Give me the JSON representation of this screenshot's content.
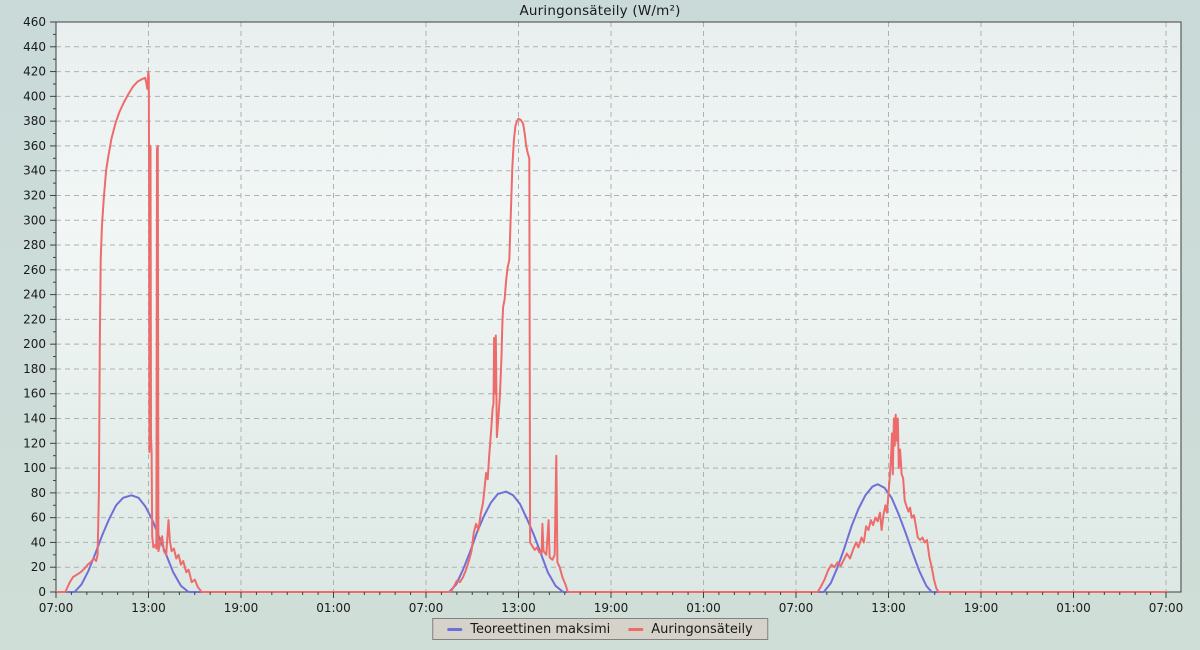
{
  "colors": {
    "outer_bg": "#cddcd8",
    "plot_bg_stops": [
      "#e8efee",
      "#f2f7f6",
      "#dde8e4"
    ],
    "grid": "#b0b0b0",
    "axis": "#404040",
    "text": "#1a1a1a",
    "legend_bg": "#d5d2c9",
    "legend_border": "#828282"
  },
  "chart_data": {
    "type": "line",
    "title": "Auringonsäteily (W/m²)",
    "grid": "dashed",
    "x_axis": {
      "unit": "hours",
      "start_hour": 7,
      "end_hour": 79,
      "major_step_hours": 6,
      "minor_step_hours": 1,
      "tick_labels": [
        "07:00",
        "13:00",
        "19:00",
        "01:00",
        "07:00",
        "13:00",
        "19:00",
        "01:00",
        "07:00",
        "13:00",
        "19:00",
        "01:00",
        "07:00"
      ]
    },
    "y_axis": {
      "min": 0,
      "max": 460,
      "major_step": 20,
      "minor_step": 10,
      "tick_labels": [
        "0",
        "20",
        "40",
        "60",
        "80",
        "100",
        "120",
        "140",
        "160",
        "180",
        "200",
        "220",
        "240",
        "260",
        "280",
        "300",
        "320",
        "340",
        "360",
        "380",
        "400",
        "420",
        "440",
        "460"
      ]
    },
    "legend": {
      "position": "bottom",
      "items": [
        {
          "label": "Teoreettinen maksimi",
          "color": "#6f6fd8"
        },
        {
          "label": "Auringonsäteily",
          "color": "#ee6b6b"
        }
      ]
    },
    "series": [
      {
        "name": "Teoreettinen maksimi",
        "color": "#6f6fd8",
        "points": [
          [
            7,
            0
          ],
          [
            8.2,
            0
          ],
          [
            8.65,
            6
          ],
          [
            9.1,
            17
          ],
          [
            9.55,
            31
          ],
          [
            10,
            46
          ],
          [
            10.45,
            59
          ],
          [
            10.9,
            70
          ],
          [
            11.35,
            76
          ],
          [
            11.9,
            78
          ],
          [
            12.35,
            76
          ],
          [
            12.8,
            69
          ],
          [
            13.25,
            58
          ],
          [
            13.7,
            44
          ],
          [
            14.15,
            30
          ],
          [
            14.6,
            16
          ],
          [
            15.1,
            5
          ],
          [
            15.6,
            0
          ],
          [
            32.5,
            0
          ],
          [
            32.95,
            6
          ],
          [
            33.4,
            18
          ],
          [
            33.85,
            32
          ],
          [
            34.3,
            48
          ],
          [
            34.75,
            61
          ],
          [
            35.2,
            72
          ],
          [
            35.65,
            79
          ],
          [
            36.2,
            81
          ],
          [
            36.65,
            78
          ],
          [
            37.1,
            71
          ],
          [
            37.55,
            59
          ],
          [
            38,
            46
          ],
          [
            38.45,
            31
          ],
          [
            38.9,
            16
          ],
          [
            39.4,
            5
          ],
          [
            39.9,
            0
          ],
          [
            56.8,
            0
          ],
          [
            57.25,
            7
          ],
          [
            57.7,
            20
          ],
          [
            58.15,
            36
          ],
          [
            58.6,
            53
          ],
          [
            59.05,
            67
          ],
          [
            59.5,
            78
          ],
          [
            59.95,
            85
          ],
          [
            60.3,
            87
          ],
          [
            60.75,
            84
          ],
          [
            61.2,
            76
          ],
          [
            61.65,
            63
          ],
          [
            62.1,
            48
          ],
          [
            62.55,
            32
          ],
          [
            63,
            17
          ],
          [
            63.45,
            5
          ],
          [
            63.8,
            0
          ],
          [
            79,
            0
          ]
        ]
      },
      {
        "name": "Auringonsäteily",
        "color": "#ee6b6b",
        "points": [
          [
            7,
            0
          ],
          [
            7.6,
            0
          ],
          [
            7.75,
            4
          ],
          [
            7.9,
            8
          ],
          [
            8.1,
            12
          ],
          [
            8.35,
            14
          ],
          [
            8.6,
            16
          ],
          [
            8.85,
            19
          ],
          [
            9.05,
            22
          ],
          [
            9.25,
            24
          ],
          [
            9.45,
            27
          ],
          [
            9.6,
            25
          ],
          [
            9.7,
            30
          ],
          [
            9.78,
            80
          ],
          [
            9.84,
            200
          ],
          [
            9.9,
            268
          ],
          [
            9.98,
            295
          ],
          [
            10.1,
            318
          ],
          [
            10.25,
            340
          ],
          [
            10.4,
            352
          ],
          [
            10.6,
            366
          ],
          [
            10.85,
            378
          ],
          [
            11.1,
            387
          ],
          [
            11.4,
            395
          ],
          [
            11.7,
            402
          ],
          [
            12,
            408
          ],
          [
            12.3,
            412
          ],
          [
            12.6,
            414
          ],
          [
            12.78,
            415
          ],
          [
            12.86,
            411
          ],
          [
            12.92,
            406
          ],
          [
            12.96,
            413
          ],
          [
            12.99,
            420
          ],
          [
            13.02,
            416
          ],
          [
            13.04,
            330
          ],
          [
            13.06,
            113
          ],
          [
            13.1,
            358
          ],
          [
            13.13,
            360
          ],
          [
            13.16,
            125
          ],
          [
            13.2,
            113
          ],
          [
            13.24,
            45
          ],
          [
            13.32,
            36
          ],
          [
            13.44,
            38
          ],
          [
            13.51,
            35
          ],
          [
            13.55,
            358
          ],
          [
            13.6,
            360
          ],
          [
            13.64,
            33
          ],
          [
            13.74,
            38
          ],
          [
            13.88,
            45
          ],
          [
            14,
            33
          ],
          [
            14.15,
            30
          ],
          [
            14.3,
            58
          ],
          [
            14.38,
            42
          ],
          [
            14.5,
            33
          ],
          [
            14.65,
            35
          ],
          [
            14.8,
            27
          ],
          [
            14.95,
            30
          ],
          [
            15.1,
            22
          ],
          [
            15.25,
            25
          ],
          [
            15.45,
            16
          ],
          [
            15.6,
            18
          ],
          [
            15.8,
            8
          ],
          [
            16,
            10
          ],
          [
            16.2,
            4
          ],
          [
            16.45,
            0
          ],
          [
            32.6,
            0
          ],
          [
            32.8,
            4
          ],
          [
            33,
            9
          ],
          [
            33.2,
            8
          ],
          [
            33.4,
            12
          ],
          [
            33.6,
            18
          ],
          [
            33.8,
            26
          ],
          [
            33.95,
            33
          ],
          [
            34.1,
            48
          ],
          [
            34.25,
            55
          ],
          [
            34.4,
            50
          ],
          [
            34.55,
            63
          ],
          [
            34.7,
            72
          ],
          [
            34.8,
            84
          ],
          [
            34.9,
            96
          ],
          [
            35,
            91
          ],
          [
            35.1,
            110
          ],
          [
            35.22,
            130
          ],
          [
            35.32,
            148
          ],
          [
            35.38,
            152
          ],
          [
            35.42,
            205
          ],
          [
            35.48,
            160
          ],
          [
            35.53,
            207
          ],
          [
            35.6,
            125
          ],
          [
            35.7,
            142
          ],
          [
            35.8,
            160
          ],
          [
            35.9,
            190
          ],
          [
            35.95,
            215
          ],
          [
            36,
            230
          ],
          [
            36.1,
            236
          ],
          [
            36.2,
            252
          ],
          [
            36.3,
            262
          ],
          [
            36.4,
            268
          ],
          [
            36.5,
            305
          ],
          [
            36.6,
            342
          ],
          [
            36.7,
            365
          ],
          [
            36.8,
            376
          ],
          [
            36.9,
            380
          ],
          [
            37,
            382
          ],
          [
            37.15,
            381
          ],
          [
            37.3,
            378
          ],
          [
            37.4,
            370
          ],
          [
            37.5,
            360
          ],
          [
            37.6,
            354
          ],
          [
            37.7,
            350
          ],
          [
            37.75,
            40
          ],
          [
            37.9,
            37
          ],
          [
            38.05,
            34
          ],
          [
            38.2,
            36
          ],
          [
            38.35,
            32
          ],
          [
            38.5,
            31
          ],
          [
            38.55,
            55
          ],
          [
            38.62,
            33
          ],
          [
            38.8,
            30
          ],
          [
            38.95,
            58
          ],
          [
            39.02,
            28
          ],
          [
            39.2,
            26
          ],
          [
            39.35,
            30
          ],
          [
            39.45,
            110
          ],
          [
            39.52,
            24
          ],
          [
            39.67,
            20
          ],
          [
            39.85,
            12
          ],
          [
            40.05,
            6
          ],
          [
            40.2,
            0
          ],
          [
            56.4,
            0
          ],
          [
            56.6,
            4
          ],
          [
            56.85,
            10
          ],
          [
            57.1,
            18
          ],
          [
            57.3,
            22
          ],
          [
            57.5,
            20
          ],
          [
            57.7,
            24
          ],
          [
            57.9,
            21
          ],
          [
            58.1,
            26
          ],
          [
            58.3,
            31
          ],
          [
            58.5,
            27
          ],
          [
            58.7,
            34
          ],
          [
            58.9,
            40
          ],
          [
            59.05,
            36
          ],
          [
            59.25,
            44
          ],
          [
            59.4,
            40
          ],
          [
            59.55,
            53
          ],
          [
            59.7,
            50
          ],
          [
            59.85,
            58
          ],
          [
            60,
            54
          ],
          [
            60.15,
            60
          ],
          [
            60.3,
            57
          ],
          [
            60.45,
            64
          ],
          [
            60.55,
            50
          ],
          [
            60.67,
            62
          ],
          [
            60.8,
            70
          ],
          [
            60.9,
            64
          ],
          [
            61,
            80
          ],
          [
            61.1,
            95
          ],
          [
            61.17,
            110
          ],
          [
            61.23,
            128
          ],
          [
            61.28,
            95
          ],
          [
            61.35,
            140
          ],
          [
            61.4,
            118
          ],
          [
            61.47,
            143
          ],
          [
            61.53,
            122
          ],
          [
            61.6,
            140
          ],
          [
            61.67,
            100
          ],
          [
            61.75,
            115
          ],
          [
            61.85,
            95
          ],
          [
            61.95,
            92
          ],
          [
            62.05,
            74
          ],
          [
            62.15,
            70
          ],
          [
            62.3,
            65
          ],
          [
            62.4,
            68
          ],
          [
            62.5,
            60
          ],
          [
            62.65,
            62
          ],
          [
            62.75,
            55
          ],
          [
            62.9,
            44
          ],
          [
            63.05,
            42
          ],
          [
            63.2,
            44
          ],
          [
            63.35,
            40
          ],
          [
            63.5,
            42
          ],
          [
            63.65,
            28
          ],
          [
            63.8,
            20
          ],
          [
            63.95,
            10
          ],
          [
            64.1,
            3
          ],
          [
            64.25,
            0
          ],
          [
            79,
            0
          ]
        ]
      }
    ]
  }
}
